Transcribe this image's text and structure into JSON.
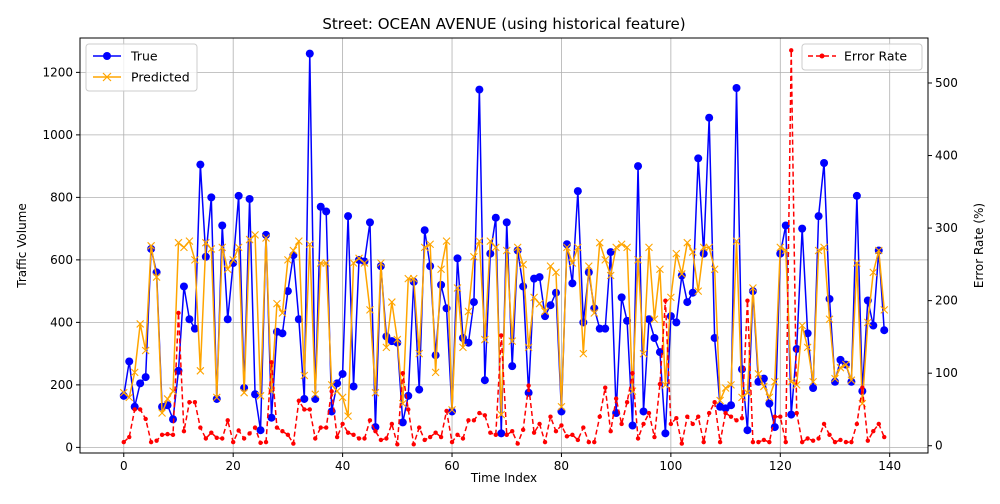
{
  "chart_data": {
    "type": "line",
    "title": "Street: OCEAN AVENUE (using historical feature)",
    "xlabel": "Time Index",
    "ylabel_left": "Traffic Volume",
    "ylabel_right": "Error Rate (%)",
    "xlim": [
      -8,
      147
    ],
    "ylim_left": [
      -18,
      1310
    ],
    "ylim_right": [
      -10,
      562
    ],
    "xticks": [
      "0",
      "20",
      "40",
      "60",
      "80",
      "100",
      "120",
      "140"
    ],
    "yticks_left": [
      "0",
      "200",
      "400",
      "600",
      "800",
      "1000",
      "1200"
    ],
    "yticks_right": [
      "0",
      "100",
      "200",
      "300",
      "400",
      "500"
    ],
    "grid": true,
    "legend_left": "upper-left",
    "legend_right": "upper-right",
    "colors": {
      "true": "#0000ff",
      "predicted": "#ffa500",
      "error": "#ff0000"
    },
    "series": [
      {
        "name": "True",
        "axis": "left",
        "marker": "circle",
        "values": [
          165,
          275,
          130,
          205,
          225,
          635,
          560,
          130,
          135,
          90,
          245,
          515,
          410,
          380,
          905,
          610,
          800,
          155,
          710,
          410,
          590,
          805,
          190,
          795,
          170,
          55,
          680,
          95,
          370,
          365,
          500,
          615,
          410,
          155,
          1260,
          155,
          770,
          755,
          115,
          205,
          235,
          740,
          195,
          600,
          595,
          720,
          65,
          580,
          355,
          340,
          335,
          80,
          165,
          530,
          185,
          695,
          580,
          295,
          520,
          445,
          115,
          605,
          350,
          335,
          465,
          1145,
          215,
          620,
          735,
          45,
          720,
          260,
          630,
          515,
          175,
          540,
          545,
          420,
          455,
          495,
          115,
          650,
          525,
          820,
          400,
          560,
          445,
          380,
          380,
          625,
          110,
          480,
          405,
          70,
          900,
          115,
          410,
          350,
          305,
          45,
          420,
          400,
          550,
          465,
          495,
          925,
          620,
          1055,
          350,
          130,
          125,
          135,
          1150,
          250,
          55,
          500,
          210,
          220,
          140,
          65,
          620,
          710,
          105,
          315,
          700,
          365,
          190,
          740,
          910,
          475,
          210,
          280,
          265,
          210,
          805,
          180,
          470,
          390,
          630,
          375
        ]
      },
      {
        "name": "Predicted",
        "axis": "left",
        "marker": "x",
        "values": [
          175,
          160,
          240,
          395,
          310,
          645,
          545,
          110,
          155,
          180,
          655,
          640,
          660,
          600,
          245,
          655,
          635,
          160,
          640,
          570,
          600,
          640,
          175,
          665,
          680,
          165,
          670,
          180,
          460,
          430,
          600,
          630,
          660,
          230,
          650,
          170,
          590,
          590,
          200,
          180,
          160,
          100,
          590,
          605,
          590,
          440,
          175,
          590,
          320,
          465,
          345,
          140,
          540,
          540,
          300,
          640,
          650,
          240,
          570,
          660,
          120,
          510,
          320,
          435,
          610,
          660,
          345,
          660,
          640,
          105,
          630,
          340,
          640,
          585,
          320,
          480,
          460,
          435,
          580,
          560,
          130,
          640,
          590,
          640,
          300,
          580,
          430,
          655,
          600,
          550,
          640,
          650,
          640,
          180,
          600,
          300,
          640,
          410,
          570,
          200,
          480,
          620,
          555,
          655,
          625,
          500,
          640,
          640,
          570,
          150,
          190,
          200,
          660,
          160,
          175,
          510,
          235,
          195,
          160,
          210,
          640,
          630,
          210,
          200,
          390,
          320,
          210,
          630,
          640,
          410,
          220,
          255,
          265,
          215,
          590,
          140,
          400,
          560,
          630,
          440
        ]
      },
      {
        "name": "Error Rate",
        "axis": "right",
        "marker": "dot",
        "values": [
          5,
          12,
          50,
          50,
          37,
          5,
          7,
          15,
          16,
          15,
          183,
          20,
          60,
          60,
          25,
          10,
          18,
          11,
          10,
          35,
          5,
          21,
          10,
          17,
          25,
          4,
          5,
          115,
          25,
          20,
          15,
          3,
          62,
          50,
          50,
          10,
          25,
          25,
          75,
          12,
          30,
          18,
          15,
          10,
          10,
          35,
          20,
          8,
          10,
          30,
          2,
          100,
          50,
          2,
          25,
          8,
          12,
          18,
          12,
          48,
          5,
          15,
          10,
          35,
          35,
          45,
          42,
          18,
          15,
          152,
          15,
          20,
          3,
          22,
          83,
          18,
          30,
          5,
          40,
          20,
          28,
          13,
          15,
          8,
          25,
          5,
          5,
          40,
          80,
          20,
          65,
          30,
          60,
          100,
          10,
          30,
          45,
          12,
          85,
          200,
          30,
          38,
          3,
          40,
          30,
          40,
          5,
          45,
          60,
          5,
          45,
          40,
          35,
          38,
          200,
          5,
          5,
          8,
          5,
          40,
          40,
          5,
          545,
          45,
          5,
          10,
          7,
          10,
          30,
          15,
          5,
          8,
          5,
          5,
          30,
          80,
          7,
          20,
          30,
          12
        ]
      }
    ]
  }
}
